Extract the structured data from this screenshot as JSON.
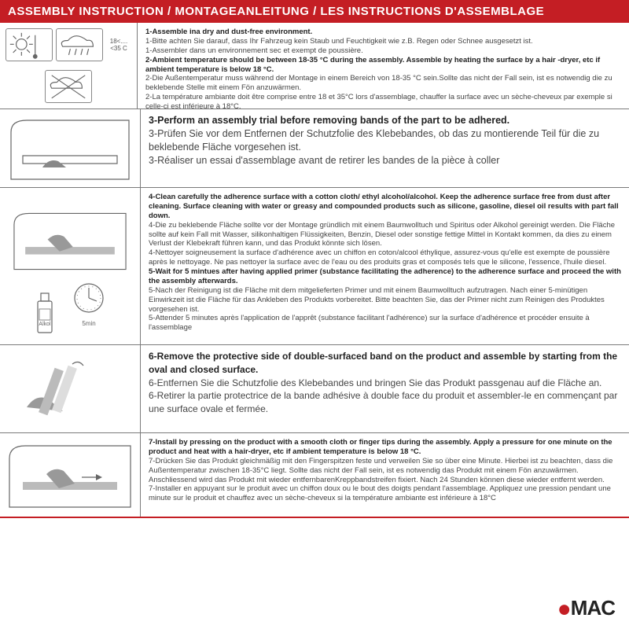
{
  "colors": {
    "brand_red": "#c41e24",
    "text_main": "#444444",
    "text_bold": "#222222",
    "border": "#7a7a7a",
    "bg": "#ffffff"
  },
  "header": {
    "title": "ASSEMBLY INSTRUCTION / MONTAGEANLEITUNG / LES INSTRUCTIONS D'ASSEMBLAGE"
  },
  "logo": {
    "text": "MAC",
    "bullet": "●"
  },
  "temp_label": "18<....<35 C",
  "primer_bottle": "Alkol",
  "primer_time": "5min",
  "rows": [
    {
      "lines": [
        {
          "bold": true,
          "text": "1-Assemble ina dry and dust-free environment."
        },
        {
          "bold": false,
          "text": "1-Bitte achten Sie darauf, dass Ihr Fahrzeug kein Staub und Feuchtigkeit wie z.B. Regen oder Schnee ausgesetzt ist."
        },
        {
          "bold": false,
          "text": "1-Assembler dans un environnement sec et exempt de poussière."
        },
        {
          "bold": true,
          "text": "2-Ambient temperature should be between 18-35 °C  during the assembly. Assemble by heating the surface by a hair -dryer, etc if ambient temperature is below 18 °C."
        },
        {
          "bold": false,
          "text": "2-Die Außentemperatur muss während der Montage in einem Bereich von 18-35 °C  sein.Sollte das nicht der Fall sein, ist es notwendig die zu beklebende Stelle mit einem Fön anzuwärmen."
        },
        {
          "bold": false,
          "text": "2-La température ambiante doit être comprise entre 18 et 35°C lors d'assemblage, chauffer la surface avec un sèche-cheveux par exemple si celle-ci est inférieure à 18°C."
        }
      ]
    },
    {
      "lines": [
        {
          "bold": true,
          "text": "3-Perform an assembly trial before removing bands of the part to be adhered."
        },
        {
          "bold": false,
          "text": "3-Prüfen Sie vor dem Entfernen der Schutzfolie des Klebebandes, ob das zu montierende Teil für die zu beklebende Fläche vorgesehen ist."
        },
        {
          "bold": false,
          "text": "3-Réaliser un essai d'assemblage avant de retirer les bandes de la pièce à coller"
        }
      ]
    },
    {
      "lines": [
        {
          "bold": true,
          "text": "4-Clean carefully the adherence surface with a cotton cloth/ ethyl alcohol/alcohol. Keep the adherence surface free from dust after cleaning. Surface cleaning with water or greasy and compounded products such as silicone, gasoline, diesel oil results with part fall down."
        },
        {
          "bold": false,
          "text": "4-Die zu beklebende Fläche sollte vor der Montage gründlich mit einem Baumwolltuch und Spiritus oder Alkohol gereinigt werden. Die Fläche sollte auf kein Fall mit Wasser, silikonhaltigen Flüssigkeiten, Benzin, Diesel oder sonstige fettige Mittel in Kontakt kommen, da dies zu einem Verlust der Klebekraft führen kann, und das Produkt könnte sich lösen."
        },
        {
          "bold": false,
          "text": "4-Nettoyer soigneusement la surface d'adhérence avec un chiffon en coton/alcool éthylique, assurez-vous qu'elle est exempte de poussière après le nettoyage. Ne pas nettoyer la surface avec de l'eau ou des produits gras et composés tels que le silicone, l'essence, l'huile diesel."
        },
        {
          "bold": true,
          "text": "5-Wait for 5 mintues after having applied primer (substance facilitating the adherence) to the adherence surface and proceed the with the assembly afterwards."
        },
        {
          "bold": false,
          "text": "5-Nach der Reinigung ist die Fläche mit dem mitgelieferten Primer und mit einem Baumwolltuch aufzutragen. Nach einer 5-minütigen Einwirkzeit ist die Fläche für das Ankleben des Produkts vorbereitet. Bitte beachten Sie, das der Primer nicht zum Reinigen des Produktes vorgesehen ist."
        },
        {
          "bold": false,
          "text": "5-Attender 5 minutes après l'application de l'apprêt (substance facilitant l'adhérence) sur la surface d'adhérence et procéder ensuite à l'assemblage"
        }
      ]
    },
    {
      "lines": [
        {
          "bold": true,
          "text": "6-Remove the protective side of double-surfaced band on the product and assemble by starting from the oval and closed surface."
        },
        {
          "bold": false,
          "text": "6-Entfernen Sie die Schutzfolie des Klebebandes und bringen Sie das Produkt passgenau auf die Fläche an."
        },
        {
          "bold": false,
          "text": "6-Retirer la partie protectrice de la bande adhésive à double face du produit et assembler-le en commençant par une surface ovale et fermée."
        }
      ]
    },
    {
      "lines": [
        {
          "bold": true,
          "text": "7-Install by pressing on the product with a smooth cloth or finger tips during the assembly. Apply a pressure for one minute on the product and heat with a hair-dryer, etc if ambient temperature is below 18 °C."
        },
        {
          "bold": false,
          "text": "7-Drücken Sie das Produkt gleichmäßig mit den Fingerspitzen feste und verweilen Sie so über eine Minute. Hierbei ist zu beachten, dass die Außentemperatur zwischen 18-35°C liegt. Sollte das nicht der Fall sein, ist es notwendig das Produkt mit einem Fön anzuwärmen. Anschliessend wird das Produkt mit wieder entfernbarenKreppbandstreifen fixiert. Nach 24 Stunden können diese wieder entfernt werden."
        },
        {
          "bold": false,
          "text": "7-Installer en appuyant sur le produit avec un chiffon doux ou le bout des doigts pendant l'assemblage. Appliquez une pression pendant une minute sur le produit et chauffez avec un sèche-cheveux si la température ambiante est inférieure à 18°C"
        }
      ]
    }
  ]
}
